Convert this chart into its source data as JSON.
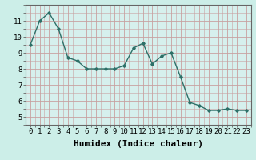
{
  "x": [
    0,
    1,
    2,
    3,
    4,
    5,
    6,
    7,
    8,
    9,
    10,
    11,
    12,
    13,
    14,
    15,
    16,
    17,
    18,
    19,
    20,
    21,
    22,
    23
  ],
  "y": [
    9.5,
    11.0,
    11.5,
    10.5,
    8.7,
    8.5,
    8.0,
    8.0,
    8.0,
    8.0,
    8.2,
    9.3,
    9.6,
    8.3,
    8.8,
    9.0,
    7.5,
    5.9,
    5.7,
    5.4,
    5.4,
    5.5,
    5.4,
    5.4
  ],
  "line_color": "#2d7068",
  "marker": "D",
  "marker_size": 1.8,
  "line_width": 1.0,
  "bg_color": "#cceee8",
  "plot_bg_color": "#d6f0ed",
  "grid_color_major": "#c8a0a0",
  "grid_color_minor": "#d0c0c0",
  "xlabel": "Humidex (Indice chaleur)",
  "xlabel_fontsize": 8,
  "xlabel_bold": true,
  "ylim": [
    4.5,
    12.0
  ],
  "xlim": [
    -0.5,
    23.5
  ],
  "yticks": [
    5,
    6,
    7,
    8,
    9,
    10,
    11
  ],
  "xticks": [
    0,
    1,
    2,
    3,
    4,
    5,
    6,
    7,
    8,
    9,
    10,
    11,
    12,
    13,
    14,
    15,
    16,
    17,
    18,
    19,
    20,
    21,
    22,
    23
  ],
  "tick_fontsize": 6.5,
  "spine_color": "#666666",
  "title": ""
}
